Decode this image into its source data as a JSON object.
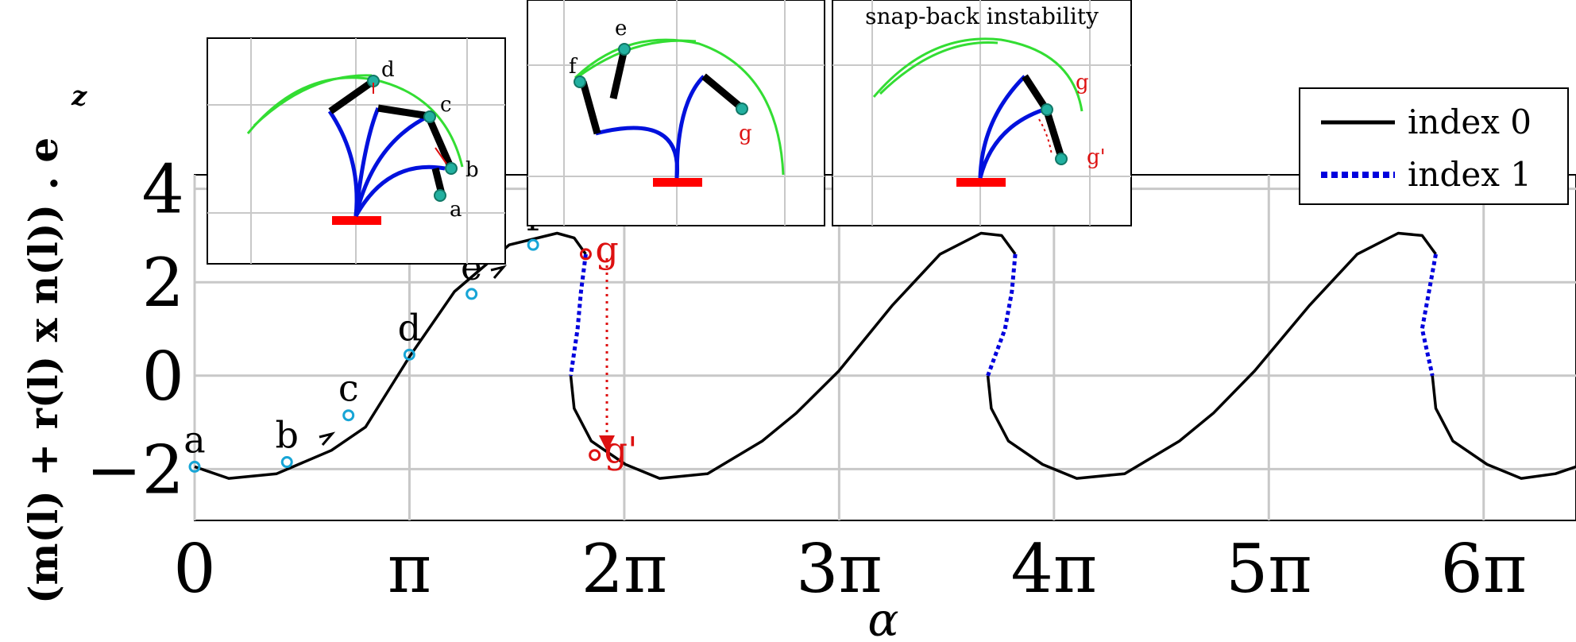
{
  "chart_data": {
    "type": "line",
    "xlabel": "α",
    "ylabel": "(m(l) + r(l) x n(l)) . e",
    "ylabel_subscript": "z",
    "xlim": [
      0,
      20.2
    ],
    "ylim": [
      -3.1,
      4.3
    ],
    "x_ticks": [
      {
        "value": 0,
        "label": "0"
      },
      {
        "value": 3.14159,
        "label": "π"
      },
      {
        "value": 6.28318,
        "label": "2π"
      },
      {
        "value": 9.42478,
        "label": "3π"
      },
      {
        "value": 12.56637,
        "label": "4π"
      },
      {
        "value": 15.70796,
        "label": "5π"
      },
      {
        "value": 18.84956,
        "label": "6π"
      }
    ],
    "y_ticks": [
      {
        "value": -2,
        "label": "−2"
      },
      {
        "value": 0,
        "label": "0"
      },
      {
        "value": 2,
        "label": "2"
      },
      {
        "value": 4,
        "label": "4"
      }
    ],
    "grid": true,
    "legend": {
      "position": "top-right",
      "entries": [
        {
          "label": "index 0",
          "color": "#000000",
          "style": "solid"
        },
        {
          "label": "index 1",
          "color": "#0000dd",
          "style": "dotted"
        }
      ]
    },
    "series": [
      {
        "name": "index 0",
        "color": "#000000",
        "segments": [
          [
            [
              0,
              -1.95
            ],
            [
              0.5,
              -2.2
            ],
            [
              1.2,
              -2.1
            ],
            [
              2.0,
              -1.6
            ],
            [
              2.5,
              -1.1
            ],
            [
              3.14,
              0.4
            ],
            [
              3.8,
              1.8
            ],
            [
              4.6,
              2.8
            ],
            [
              5.3,
              3.05
            ],
            [
              5.55,
              2.95
            ],
            [
              5.72,
              2.6
            ]
          ],
          [
            [
              5.5,
              0
            ],
            [
              5.55,
              -0.7
            ],
            [
              5.8,
              -1.4
            ],
            [
              6.3,
              -1.9
            ],
            [
              6.8,
              -2.2
            ],
            [
              7.5,
              -2.1
            ],
            [
              8.3,
              -1.4
            ],
            [
              8.8,
              -0.8
            ],
            [
              9.42,
              0.1
            ],
            [
              10.2,
              1.5
            ],
            [
              10.9,
              2.6
            ],
            [
              11.5,
              3.05
            ],
            [
              11.8,
              3.0
            ],
            [
              12.0,
              2.6
            ]
          ],
          [
            [
              11.6,
              0
            ],
            [
              11.65,
              -0.7
            ],
            [
              11.9,
              -1.4
            ],
            [
              12.4,
              -1.9
            ],
            [
              12.9,
              -2.2
            ],
            [
              13.6,
              -2.1
            ],
            [
              14.4,
              -1.4
            ],
            [
              14.9,
              -0.8
            ],
            [
              15.5,
              0.1
            ],
            [
              16.3,
              1.5
            ],
            [
              17.0,
              2.6
            ],
            [
              17.6,
              3.05
            ],
            [
              17.95,
              3.0
            ],
            [
              18.15,
              2.6
            ]
          ],
          [
            [
              18.1,
              0
            ],
            [
              18.15,
              -0.7
            ],
            [
              18.4,
              -1.4
            ],
            [
              18.9,
              -1.9
            ],
            [
              19.4,
              -2.2
            ],
            [
              19.9,
              -2.1
            ],
            [
              20.2,
              -1.95
            ]
          ]
        ]
      },
      {
        "name": "index 1",
        "color": "#0000dd",
        "segments": [
          [
            [
              5.72,
              2.6
            ],
            [
              5.65,
              1.8
            ],
            [
              5.6,
              1.0
            ],
            [
              5.5,
              0
            ]
          ],
          [
            [
              12.0,
              2.6
            ],
            [
              11.95,
              1.8
            ],
            [
              11.85,
              1.0
            ],
            [
              11.6,
              0
            ]
          ],
          [
            [
              18.15,
              2.6
            ],
            [
              18.05,
              1.8
            ],
            [
              17.95,
              1.0
            ],
            [
              18.1,
              0
            ]
          ]
        ]
      }
    ],
    "points": [
      {
        "label": "a",
        "x": 0.0,
        "y": -1.95,
        "color": "#17a5d6"
      },
      {
        "label": "b",
        "x": 1.35,
        "y": -1.85,
        "color": "#17a5d6"
      },
      {
        "label": "c",
        "x": 2.25,
        "y": -0.85,
        "color": "#17a5d6"
      },
      {
        "label": "d",
        "x": 3.14,
        "y": 0.45,
        "color": "#17a5d6"
      },
      {
        "label": "e",
        "x": 4.05,
        "y": 1.75,
        "color": "#17a5d6"
      },
      {
        "label": "f",
        "x": 4.95,
        "y": 2.8,
        "color": "#17a5d6"
      },
      {
        "label": "g",
        "x": 5.72,
        "y": 2.6,
        "color": "#dd1111"
      },
      {
        "label": "g'",
        "x": 5.85,
        "y": -1.7,
        "color": "#dd1111"
      }
    ],
    "annotations": {
      "inset_title": "snap-back instability",
      "inset_labels": [
        "d",
        "c",
        "b",
        "a",
        "e",
        "f",
        "g",
        "g",
        "g'"
      ]
    }
  }
}
